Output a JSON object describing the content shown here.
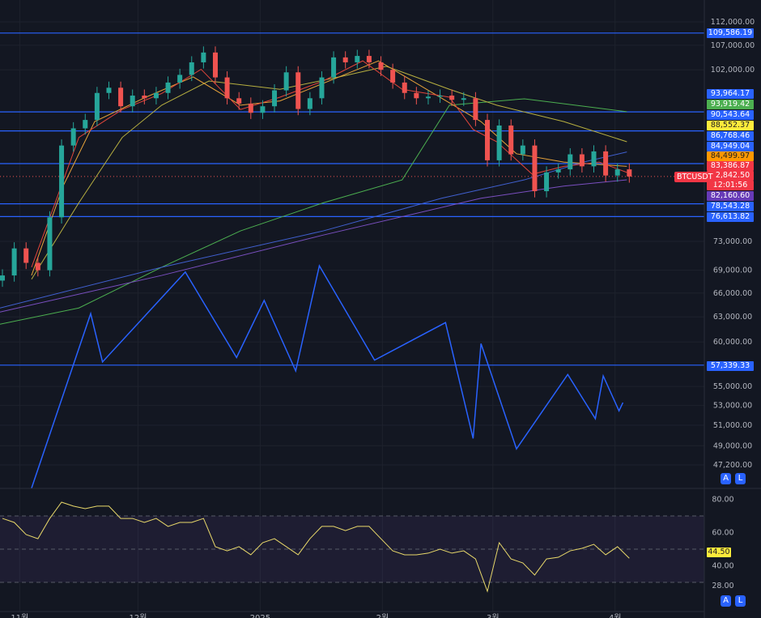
{
  "symbol": "BTCUSDT",
  "countdown": "12:01:56",
  "colors": {
    "background": "#131722",
    "up": "#26a69a",
    "down": "#ef5350",
    "hline": "#2962ff",
    "rsi": "#e8d86a",
    "ma_red": "#e0453a",
    "ma_orange": "#e8a33a",
    "ma_yellow": "#b8b040",
    "ma_green": "#4caf50",
    "ma_blue": "#4060d0",
    "ma_purple": "#7a4fc0"
  },
  "buttons": {
    "auto": "A",
    "log": "L"
  },
  "chart_data": [
    {
      "type": "candlestick",
      "scale": "log",
      "ylim": [
        45000,
        114000
      ],
      "y_ticks": [
        "112,000.00",
        "107,000.00",
        "102,000.00",
        "73,000.00",
        "69,000.00",
        "66,000.00",
        "63,000.00",
        "60,000.00",
        "55,000.00",
        "53,000.00",
        "51,000.00",
        "49,000.00",
        "47,200.00"
      ],
      "y_tick_values": [
        112000,
        107000,
        102000,
        73000,
        69000,
        66000,
        63000,
        60000,
        55000,
        53000,
        51000,
        49000,
        47200
      ],
      "x_ticks": [
        {
          "label": "11월",
          "date": "2024-11-01"
        },
        {
          "label": "12월",
          "date": "2024-12-01"
        },
        {
          "label": "2025",
          "date": "2025-01-01"
        },
        {
          "label": "2월",
          "date": "2025-02-01"
        },
        {
          "label": "3월",
          "date": "2025-03-01"
        },
        {
          "label": "4월",
          "date": "2025-04-01"
        }
      ],
      "xlim": [
        "2024-10-27",
        "2025-05-25"
      ],
      "candle_start": "2024-10-27",
      "candle_interval_days": 3,
      "closes": [
        68300,
        72000,
        70000,
        69000,
        76500,
        88000,
        91000,
        92500,
        97500,
        98500,
        95000,
        97000,
        96500,
        97500,
        99500,
        101000,
        103500,
        105500,
        100500,
        96500,
        95500,
        93800,
        95000,
        98000,
        101500,
        94500,
        96500,
        100500,
        104500,
        103500,
        104800,
        103500,
        102000,
        99500,
        97500,
        96500,
        96800,
        97000,
        96200,
        96500,
        92500,
        85500,
        91500,
        86500,
        88000,
        80500,
        83500,
        84000,
        86500,
        84500,
        87000,
        83000,
        84000,
        82842.5
      ],
      "last_price": "82,842.50",
      "horizontal_levels": [
        {
          "value": 109586.19,
          "label": "109,586.19"
        },
        {
          "value": 93964.17,
          "label": "93,964.17"
        },
        {
          "value": 90543.64,
          "label": "90,543.64"
        },
        {
          "value": 84949.04,
          "label": "84,949.04"
        },
        {
          "value": 78543.28,
          "label": "78,543.28"
        },
        {
          "value": 76613.82,
          "label": "76,613.82"
        },
        {
          "value": 57339.33,
          "label": "57,339.33"
        }
      ],
      "moving_averages": [
        {
          "color": "green",
          "label": "93,919.42",
          "points": [
            [
              "2024-10-27",
              62100
            ],
            [
              "2024-11-16",
              64100
            ],
            [
              "2024-12-07",
              69400
            ],
            [
              "2024-12-27",
              74500
            ],
            [
              "2025-01-17",
              78700
            ],
            [
              "2025-02-06",
              82300
            ],
            [
              "2025-02-18",
              95200
            ],
            [
              "2025-03-09",
              96400
            ],
            [
              "2025-04-04",
              94000
            ]
          ]
        },
        {
          "color": "yellow",
          "label": "88,552.37",
          "points": [
            [
              "2024-11-04",
              67800
            ],
            [
              "2024-11-16",
              78700
            ],
            [
              "2024-11-27",
              89400
            ],
            [
              "2024-12-07",
              95200
            ],
            [
              "2024-12-19",
              99800
            ],
            [
              "2025-01-06",
              98200
            ],
            [
              "2025-01-21",
              100600
            ],
            [
              "2025-02-02",
              102700
            ],
            [
              "2025-02-18",
              98200
            ],
            [
              "2025-03-02",
              95200
            ],
            [
              "2025-03-19",
              92200
            ],
            [
              "2025-04-04",
              88650
            ]
          ]
        },
        {
          "color": "blue",
          "label": "86,768.46",
          "points": [
            [
              "2024-10-27",
              64100
            ],
            [
              "2024-12-07",
              69400
            ],
            [
              "2025-01-17",
              74500
            ],
            [
              "2025-02-16",
              79400
            ],
            [
              "2025-03-09",
              82300
            ],
            [
              "2025-03-24",
              85200
            ],
            [
              "2025-04-04",
              86900
            ]
          ]
        },
        {
          "color": "orange",
          "label": "84,499.97",
          "points": [
            [
              "2024-11-04",
              68300
            ],
            [
              "2024-11-12",
              81300
            ],
            [
              "2024-11-20",
              92200
            ],
            [
              "2024-12-03",
              96700
            ],
            [
              "2024-12-15",
              100600
            ],
            [
              "2024-12-27",
              95200
            ],
            [
              "2025-01-06",
              96000
            ],
            [
              "2025-01-21",
              100600
            ],
            [
              "2025-01-31",
              103800
            ],
            [
              "2025-02-14",
              97400
            ],
            [
              "2025-02-26",
              92200
            ],
            [
              "2025-03-07",
              86600
            ],
            [
              "2025-03-19",
              85200
            ],
            [
              "2025-04-04",
              84500
            ]
          ]
        },
        {
          "color": "red",
          "label": "83,386.87",
          "points": [
            [
              "2024-11-04",
              69400
            ],
            [
              "2024-11-10",
              78700
            ],
            [
              "2024-11-16",
              89400
            ],
            [
              "2024-11-27",
              94400
            ],
            [
              "2024-12-07",
              97400
            ],
            [
              "2024-12-17",
              102100
            ],
            [
              "2024-12-27",
              94400
            ],
            [
              "2025-01-06",
              96700
            ],
            [
              "2025-01-17",
              99800
            ],
            [
              "2025-01-27",
              103800
            ],
            [
              "2025-02-06",
              98200
            ],
            [
              "2025-02-18",
              96700
            ],
            [
              "2025-02-24",
              90800
            ],
            [
              "2025-03-02",
              88650
            ],
            [
              "2025-03-11",
              83200
            ],
            [
              "2025-03-19",
              84500
            ],
            [
              "2025-03-28",
              85200
            ],
            [
              "2025-04-04",
              83500
            ]
          ]
        },
        {
          "color": "purple",
          "label": "82,160.60",
          "points": [
            [
              "2024-10-27",
              63600
            ],
            [
              "2024-12-07",
              68300
            ],
            [
              "2025-01-17",
              73900
            ],
            [
              "2025-02-26",
              79400
            ],
            [
              "2025-03-19",
              81300
            ],
            [
              "2025-04-04",
              82300
            ]
          ]
        }
      ],
      "drawing_polyline": [
        [
          "2024-11-04",
          45100
        ],
        [
          "2024-11-19",
          63400
        ],
        [
          "2024-11-22",
          57700
        ],
        [
          "2024-12-13",
          68750
        ],
        [
          "2024-12-26",
          58200
        ],
        [
          "2025-01-02",
          65050
        ],
        [
          "2025-01-10",
          56700
        ],
        [
          "2025-01-16",
          69600
        ],
        [
          "2025-01-30",
          57900
        ],
        [
          "2025-02-17",
          62300
        ],
        [
          "2025-02-24",
          49700
        ],
        [
          "2025-02-26",
          59800
        ],
        [
          "2025-03-07",
          48700
        ],
        [
          "2025-03-20",
          56300
        ],
        [
          "2025-03-27",
          51650
        ],
        [
          "2025-03-29",
          56150
        ],
        [
          "2025-04-02",
          52450
        ],
        [
          "2025-04-03",
          53300
        ]
      ]
    },
    {
      "type": "line",
      "indicator": "RSI",
      "ylim": [
        20,
        85
      ],
      "y_ticks": [
        "80.00",
        "60.00",
        "40.00",
        "28.00"
      ],
      "y_tick_values": [
        80,
        60,
        40,
        28
      ],
      "bands": [
        70,
        50,
        30
      ],
      "start": "2024-10-27",
      "interval_days": 3,
      "values": [
        68.5,
        66.1,
        58.8,
        56.3,
        68.5,
        78.3,
        75.9,
        74.4,
        75.9,
        75.9,
        68.5,
        68.5,
        66.1,
        68.5,
        63.7,
        66.1,
        66.1,
        68.5,
        51.5,
        49.0,
        51.5,
        46.6,
        53.9,
        56.3,
        51.5,
        46.6,
        56.3,
        63.7,
        63.7,
        61.2,
        63.7,
        63.7,
        56.3,
        49.0,
        46.6,
        46.6,
        47.6,
        50.0,
        47.6,
        49.0,
        44.1,
        24.6,
        53.9,
        44.1,
        41.7,
        34.4,
        44.1,
        45.1,
        49.0,
        50.5,
        52.9,
        46.6,
        51.5,
        44.5
      ],
      "last_value": "44.50"
    }
  ]
}
